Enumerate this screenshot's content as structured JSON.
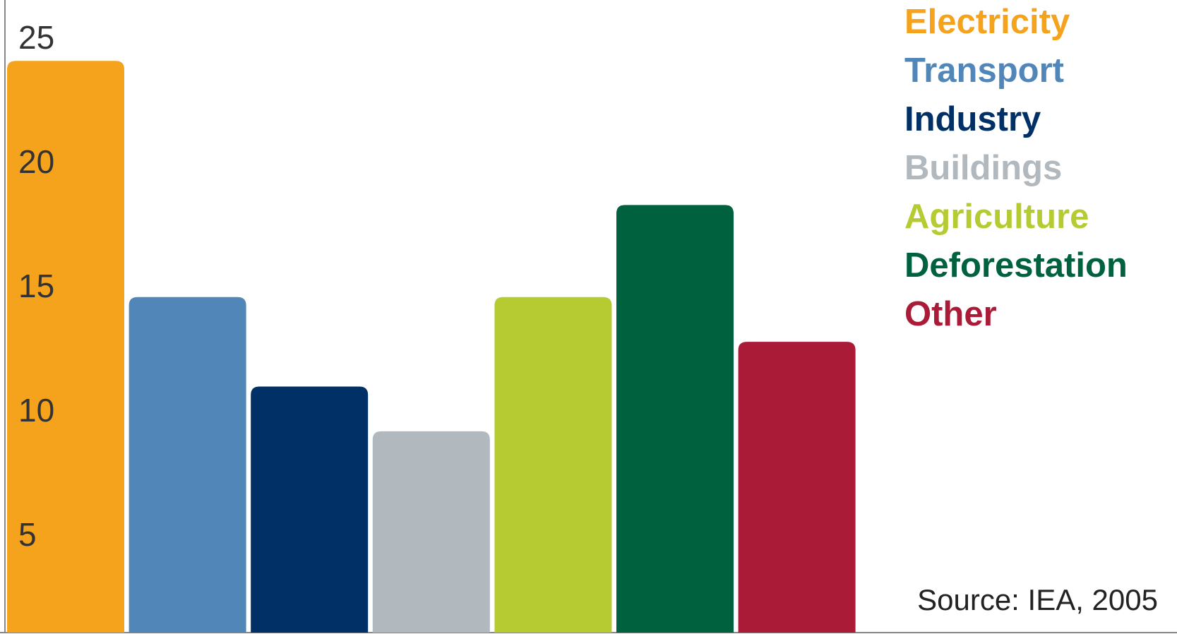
{
  "chart_data": {
    "type": "bar",
    "categories": [
      "Electricity",
      "Transport",
      "Industry",
      "Buildings",
      "Agriculture",
      "Deforestation",
      "Other"
    ],
    "values": [
      24,
      14.5,
      10.9,
      9.1,
      14.5,
      18.2,
      12.7
    ],
    "colors": [
      "#F5A21C",
      "#5187B8",
      "#003066",
      "#B1B8BE",
      "#B6CB31",
      "#00613F",
      "#AA1B38"
    ],
    "yticks": [
      5,
      10,
      15,
      20,
      25
    ],
    "ylim": [
      1,
      25
    ],
    "legend_position": "top-right",
    "source": "Source: IEA, 2005"
  }
}
